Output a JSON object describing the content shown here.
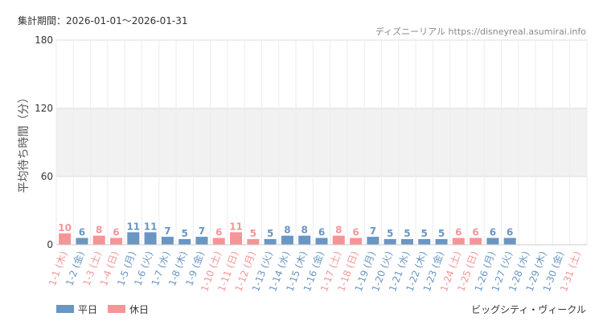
{
  "header": {
    "period_text": "集計期間：2026-01-01〜2026-01-31",
    "source_text": "ディズニーリアル https://disneyreal.asumirai.info"
  },
  "footer": {
    "facility_name": "ビッグシティ・ヴィークル"
  },
  "colors": {
    "weekday": "#6a96c3",
    "holiday": "#f49597",
    "band": "#f1f1f1",
    "grid": "#dddddd"
  },
  "chart_data": {
    "type": "bar",
    "ylabel": "平均待ち時間（分）",
    "ylim": [
      0,
      180
    ],
    "yticks": [
      0,
      60,
      120,
      180
    ],
    "shaded_band": [
      60,
      120
    ],
    "grid": true,
    "legend": [
      {
        "name": "平日",
        "kind": "weekday"
      },
      {
        "name": "休日",
        "kind": "holiday"
      }
    ],
    "legend_position": "bottom-left",
    "categories": [
      "1-1 (木)",
      "1-2 (金)",
      "1-3 (土)",
      "1-4 (日)",
      "1-5 (月)",
      "1-6 (火)",
      "1-7 (水)",
      "1-8 (木)",
      "1-9 (金)",
      "1-10 (土)",
      "1-11 (日)",
      "1-12 (月)",
      "1-13 (火)",
      "1-14 (水)",
      "1-15 (木)",
      "1-16 (金)",
      "1-17 (土)",
      "1-18 (日)",
      "1-19 (月)",
      "1-20 (火)",
      "1-21 (水)",
      "1-22 (木)",
      "1-23 (金)",
      "1-24 (土)",
      "1-25 (日)",
      "1-26 (月)",
      "1-27 (火)",
      "1-28 (水)",
      "1-29 (木)",
      "1-30 (金)",
      "1-31 (土)"
    ],
    "values": [
      10,
      6,
      8,
      6,
      11,
      11,
      7,
      5,
      7,
      6,
      11,
      5,
      5,
      8,
      8,
      6,
      8,
      6,
      7,
      5,
      5,
      5,
      5,
      6,
      6,
      6,
      6,
      null,
      null,
      null,
      null
    ],
    "day_type": [
      "holiday",
      "weekday",
      "holiday",
      "holiday",
      "weekday",
      "weekday",
      "weekday",
      "weekday",
      "weekday",
      "holiday",
      "holiday",
      "holiday",
      "weekday",
      "weekday",
      "weekday",
      "weekday",
      "holiday",
      "holiday",
      "weekday",
      "weekday",
      "weekday",
      "weekday",
      "weekday",
      "holiday",
      "holiday",
      "weekday",
      "weekday",
      "weekday",
      "weekday",
      "weekday",
      "holiday"
    ]
  }
}
